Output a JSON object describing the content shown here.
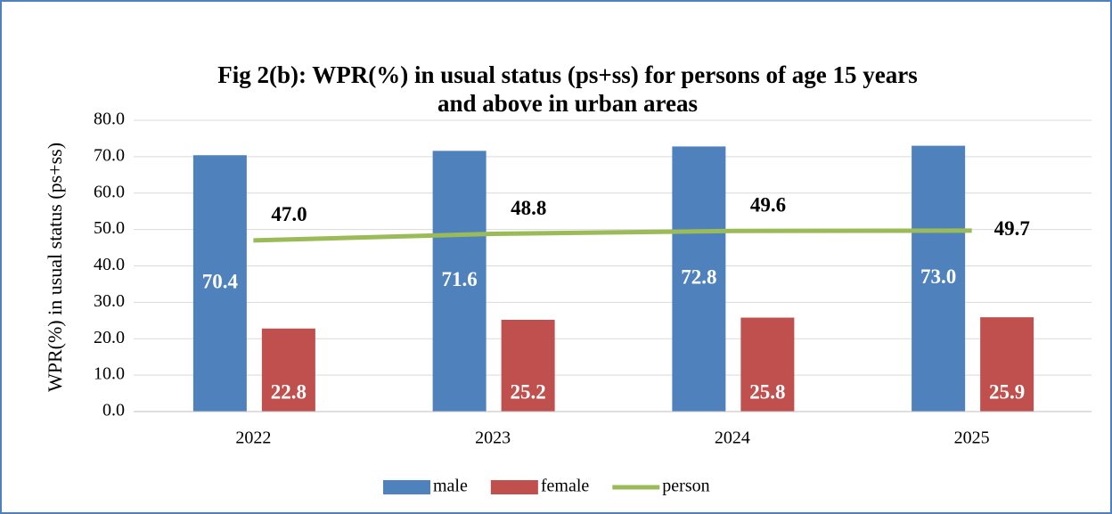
{
  "chart_data": {
    "type": "bar",
    "title": "Fig 2(b): WPR(%) in usual status (ps+ss) for persons of age 15 years",
    "subtitle": "and above in urban areas",
    "y_label": "WPR(%) in usual status (ps+ss)",
    "categories": [
      "2022",
      "2023",
      "2024",
      "2025"
    ],
    "series": [
      {
        "name": "male",
        "color": "#4f81bd",
        "values": [
          70.4,
          71.6,
          72.8,
          73.0
        ],
        "value_labels": [
          "70.4",
          "71.6",
          "72.8",
          "73.0"
        ]
      },
      {
        "name": "female",
        "color": "#c0504d",
        "values": [
          22.8,
          25.2,
          25.8,
          25.9
        ],
        "value_labels": [
          "22.8",
          "25.2",
          "25.8",
          "25.9"
        ]
      },
      {
        "name": "person",
        "type": "line",
        "color": "#9bbb59",
        "values": [
          47.0,
          48.8,
          49.6,
          49.7
        ],
        "value_labels": [
          "47.0",
          "48.8",
          "49.6",
          "49.7"
        ]
      }
    ],
    "ylim": [
      0,
      80
    ],
    "yticks": [
      {
        "value": 0,
        "label": "0.0"
      },
      {
        "value": 10,
        "label": "10.0"
      },
      {
        "value": 20,
        "label": "20.0"
      },
      {
        "value": 30,
        "label": "30.0"
      },
      {
        "value": 40,
        "label": "40.0"
      },
      {
        "value": 50,
        "label": "50.0"
      },
      {
        "value": 60,
        "label": "60.0"
      },
      {
        "value": 70,
        "label": "70.0"
      },
      {
        "value": 80,
        "label": "80.0"
      }
    ],
    "grid": true,
    "legend": "bottom"
  }
}
